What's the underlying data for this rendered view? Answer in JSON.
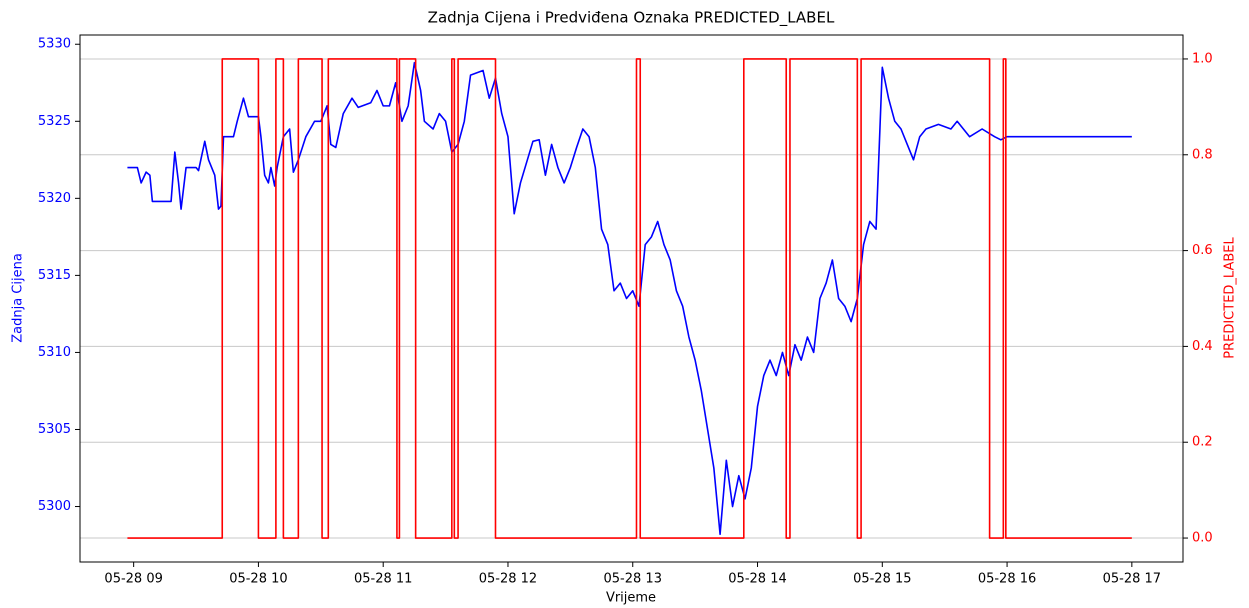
{
  "chart_data": {
    "type": "line",
    "title": "Zadnja Cijena i Predviđena Oznaka  PREDICTED_LABEL",
    "xlabel": "Vrijeme",
    "ylabel": "Zadnja Cijena",
    "y2label": "PREDICTED_LABEL",
    "xlim": [
      8.57,
      17.41
    ],
    "ylim": [
      5296.4,
      5330.6
    ],
    "y2lim": [
      -0.05,
      1.05
    ],
    "xticks": [
      {
        "value": 9,
        "label": "05-28 09"
      },
      {
        "value": 10,
        "label": "05-28 10"
      },
      {
        "value": 11,
        "label": "05-28 11"
      },
      {
        "value": 12,
        "label": "05-28 12"
      },
      {
        "value": 13,
        "label": "05-28 13"
      },
      {
        "value": 14,
        "label": "05-28 14"
      },
      {
        "value": 15,
        "label": "05-28 15"
      },
      {
        "value": 16,
        "label": "05-28 16"
      },
      {
        "value": 17,
        "label": "05-28 17"
      }
    ],
    "yticks": [
      5300,
      5305,
      5310,
      5315,
      5320,
      5325,
      5330
    ],
    "y2ticks": [
      {
        "value": 0,
        "label": "0.0"
      },
      {
        "value": 0.2,
        "label": "0.2"
      },
      {
        "value": 0.4,
        "label": "0.4"
      },
      {
        "value": 0.6,
        "label": "0.6"
      },
      {
        "value": 0.8,
        "label": "0.8"
      },
      {
        "value": 1,
        "label": "1.0"
      }
    ],
    "grid": "y2",
    "series": [
      {
        "color": "#0000ff",
        "axis": "y",
        "drawstyle": "default",
        "x": [
          8.95,
          9.03,
          9.06,
          9.1,
          9.13,
          9.15,
          9.3,
          9.33,
          9.36,
          9.38,
          9.42,
          9.5,
          9.52,
          9.57,
          9.6,
          9.65,
          9.68,
          9.7,
          9.72,
          9.8,
          9.83,
          9.88,
          9.92,
          10.0,
          10.02,
          10.05,
          10.08,
          10.1,
          10.13,
          10.15,
          10.2,
          10.25,
          10.28,
          10.32,
          10.38,
          10.45,
          10.5,
          10.55,
          10.58,
          10.62,
          10.68,
          10.75,
          10.8,
          10.9,
          10.95,
          11.0,
          11.05,
          11.1,
          11.15,
          11.2,
          11.25,
          11.3,
          11.33,
          11.4,
          11.45,
          11.5,
          11.55,
          11.6,
          11.65,
          11.7,
          11.8,
          11.85,
          11.9,
          11.95,
          12.0,
          12.05,
          12.1,
          12.2,
          12.25,
          12.3,
          12.35,
          12.4,
          12.45,
          12.5,
          12.55,
          12.6,
          12.65,
          12.7,
          12.75,
          12.8,
          12.85,
          12.9,
          12.95,
          13.0,
          13.05,
          13.1,
          13.15,
          13.2,
          13.25,
          13.3,
          13.35,
          13.4,
          13.45,
          13.5,
          13.55,
          13.6,
          13.65,
          13.7,
          13.75,
          13.8,
          13.85,
          13.9,
          13.95,
          14.0,
          14.05,
          14.1,
          14.15,
          14.2,
          14.25,
          14.3,
          14.35,
          14.4,
          14.45,
          14.5,
          14.55,
          14.6,
          14.65,
          14.7,
          14.75,
          14.8,
          14.85,
          14.9,
          14.95,
          15.0,
          15.05,
          15.1,
          15.15,
          15.2,
          15.25,
          15.3,
          15.35,
          15.45,
          15.55,
          15.6,
          15.7,
          15.8,
          15.9,
          15.95,
          16.0,
          17.0
        ],
        "values": [
          5322,
          5322,
          5321,
          5321.7,
          5321.5,
          5319.8,
          5319.8,
          5323,
          5321,
          5319.3,
          5322,
          5322,
          5321.8,
          5323.7,
          5322.5,
          5321.5,
          5319.3,
          5319.5,
          5324,
          5324,
          5325,
          5326.5,
          5325.3,
          5325.3,
          5324,
          5321.5,
          5321,
          5322,
          5320.8,
          5322,
          5324,
          5324.5,
          5321.7,
          5322.5,
          5324,
          5325,
          5325,
          5326,
          5323.5,
          5323.3,
          5325.5,
          5326.5,
          5325.9,
          5326.2,
          5327,
          5326,
          5326,
          5327.5,
          5325,
          5326,
          5328.8,
          5327,
          5325,
          5324.5,
          5325.5,
          5325,
          5323,
          5323.5,
          5325,
          5328,
          5328.3,
          5326.5,
          5327.8,
          5325.5,
          5324,
          5319,
          5321,
          5323.7,
          5323.8,
          5321.5,
          5323.5,
          5322,
          5321,
          5322,
          5323.3,
          5324.5,
          5324,
          5322,
          5318,
          5317,
          5314,
          5314.5,
          5313.5,
          5314,
          5313,
          5317,
          5317.5,
          5318.5,
          5317,
          5316,
          5314,
          5313,
          5311,
          5309.5,
          5307.5,
          5305,
          5302.5,
          5298.2,
          5303,
          5300,
          5302,
          5300.5,
          5302.5,
          5306.5,
          5308.5,
          5309.5,
          5308.5,
          5310,
          5308.5,
          5310.5,
          5309.5,
          5311,
          5310,
          5313.5,
          5314.5,
          5316,
          5313.5,
          5313,
          5312,
          5313.5,
          5317,
          5318.5,
          5318,
          5328.5,
          5326.5,
          5325,
          5324.5,
          5323.5,
          5322.5,
          5324,
          5324.5,
          5324.8,
          5324.5,
          5325,
          5324,
          5324.5,
          5324,
          5323.8,
          5324,
          5324
        ]
      },
      {
        "color": "#ff0000",
        "axis": "y2",
        "drawstyle": "steps-post",
        "x": [
          8.95,
          9.71,
          10.0,
          10.14,
          10.2,
          10.32,
          10.51,
          10.56,
          11.11,
          11.13,
          11.26,
          11.55,
          11.57,
          11.6,
          11.9,
          13.03,
          13.06,
          13.89,
          14.23,
          14.26,
          14.8,
          14.83,
          15.86,
          15.97,
          15.99,
          17.0
        ],
        "values": [
          0,
          1,
          0,
          1,
          0,
          1,
          0,
          1,
          0,
          1,
          0,
          1,
          0,
          1,
          0,
          1,
          0,
          1,
          0,
          1,
          0,
          1,
          0,
          1,
          0,
          0
        ]
      }
    ]
  }
}
